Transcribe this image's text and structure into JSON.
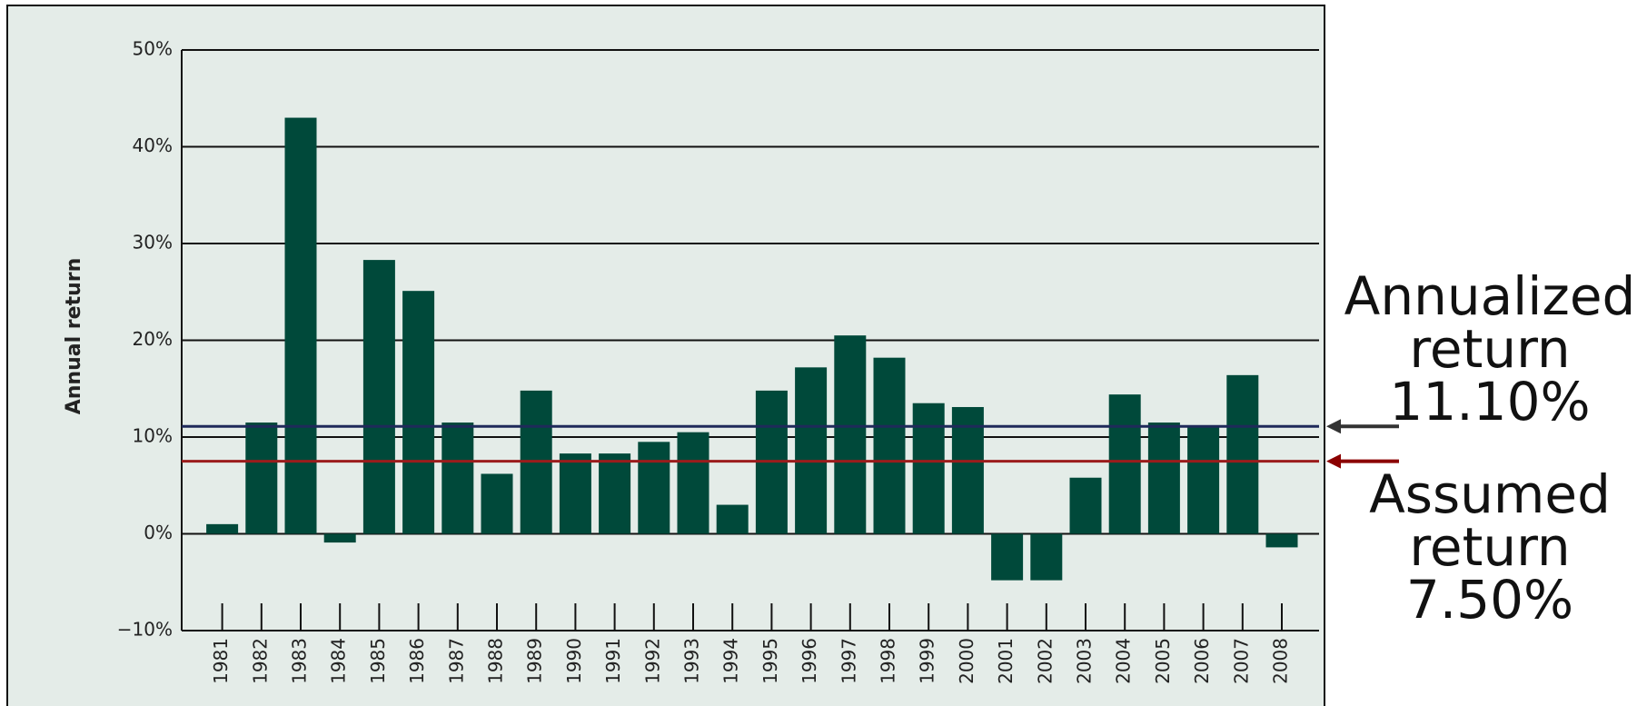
{
  "chart_data": {
    "type": "bar",
    "y_label": "Annual return",
    "categories": [
      "1981",
      "1982",
      "1983",
      "1984",
      "1985",
      "1986",
      "1987",
      "1988",
      "1989",
      "1990",
      "1991",
      "1992",
      "1993",
      "1994",
      "1995",
      "1996",
      "1997",
      "1998",
      "1999",
      "2000",
      "2001",
      "2002",
      "2003",
      "2004",
      "2005",
      "2006",
      "2007",
      "2008"
    ],
    "values": [
      1.0,
      11.5,
      43.0,
      -0.9,
      28.3,
      25.1,
      11.5,
      6.2,
      14.8,
      8.3,
      8.3,
      9.5,
      10.5,
      3.0,
      14.8,
      17.2,
      20.5,
      18.2,
      13.5,
      13.1,
      -4.8,
      -4.8,
      5.8,
      14.4,
      11.5,
      11.0,
      16.4,
      -1.4
    ],
    "color": "#00493a",
    "ylim": [
      -10,
      50
    ],
    "yticks": [
      {
        "value": -10,
        "label": "−10%"
      },
      {
        "value": 0,
        "label": "0%"
      },
      {
        "value": 10,
        "label": "10%"
      },
      {
        "value": 20,
        "label": "20%"
      },
      {
        "value": 30,
        "label": "30%"
      },
      {
        "value": 40,
        "label": "40%"
      },
      {
        "value": 50,
        "label": "50%"
      }
    ],
    "grid": true,
    "annotations": [
      {
        "lines": [
          "Annualized",
          "return",
          "11.10%"
        ],
        "value": 11.1,
        "color": "#1f2a5a",
        "arrow_color": "#333333"
      },
      {
        "lines": [
          "Assumed",
          "return",
          "7.50%"
        ],
        "value": 7.5,
        "color": "#9b1c1c",
        "arrow_color": "#8b0000"
      }
    ]
  }
}
